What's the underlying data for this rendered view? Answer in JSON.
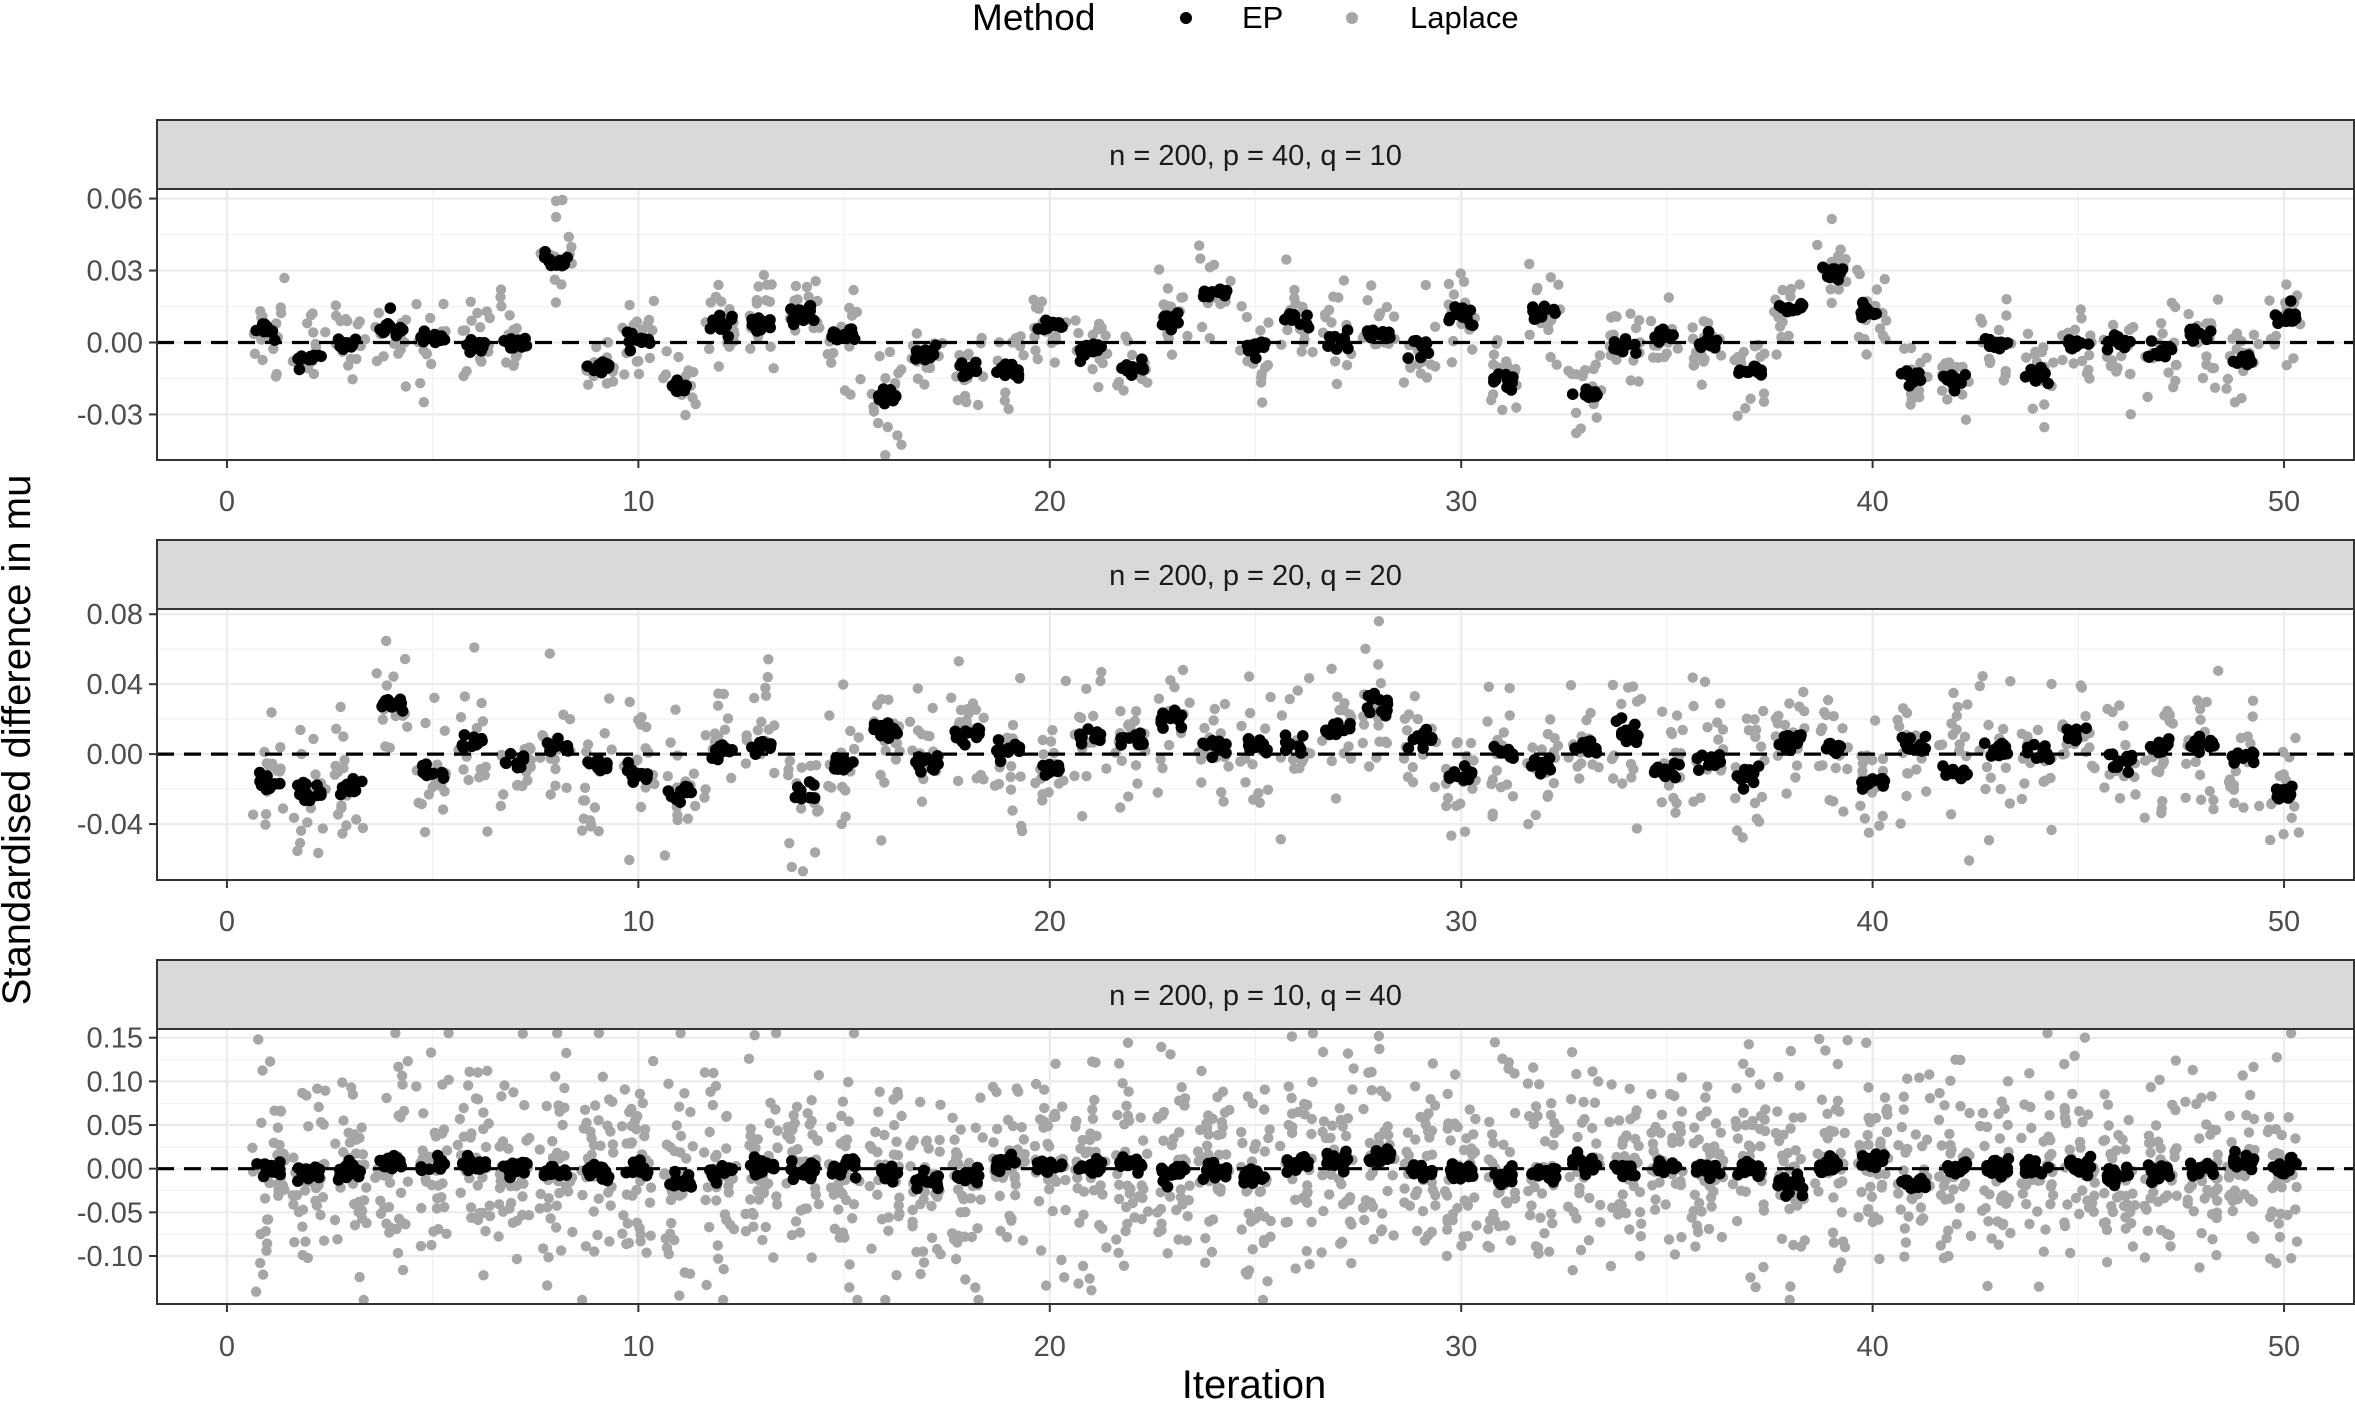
{
  "chart_data": {
    "type": "scatter",
    "legend": {
      "title": "Method",
      "position": "top",
      "entries": [
        {
          "name": "EP",
          "color": "#000000"
        },
        {
          "name": "Laplace",
          "color": "#a6a6a6"
        }
      ]
    },
    "xlabel": "Iteration",
    "ylabel": "Standardised difference in mu",
    "xlim": [
      -1.7,
      51.7
    ],
    "x_ticks": [
      0,
      10,
      20,
      30,
      40,
      50
    ],
    "x_tick_labels": [
      "0",
      "10",
      "20",
      "30",
      "40",
      "50"
    ],
    "grid": true,
    "reference_line": {
      "y": 0,
      "style": "dashed",
      "color": "#000000"
    },
    "series": [
      {
        "name": "EP",
        "color": "#000000"
      },
      {
        "name": "Laplace",
        "color": "#a6a6a6"
      }
    ],
    "panels": [
      {
        "strip": "n = 200, p = 40, q = 10",
        "ylim": [
          -0.049,
          0.064
        ],
        "y_ticks": [
          -0.03,
          0,
          0.03,
          0.06
        ],
        "y_tick_labels": [
          "-0.03",
          "0.00",
          "0.03",
          "0.06"
        ],
        "iterations": [
          1,
          2,
          3,
          4,
          5,
          6,
          7,
          8,
          9,
          10,
          11,
          12,
          13,
          14,
          15,
          16,
          17,
          18,
          19,
          20,
          21,
          22,
          23,
          24,
          25,
          26,
          27,
          28,
          29,
          30,
          31,
          32,
          33,
          34,
          35,
          36,
          37,
          38,
          39,
          40,
          41,
          42,
          43,
          44,
          45,
          46,
          47,
          48,
          49,
          50
        ],
        "EP_center": [
          0.006,
          -0.006,
          -0.001,
          0.006,
          0.002,
          -0.002,
          0.0,
          0.034,
          -0.01,
          0.001,
          -0.019,
          0.008,
          0.008,
          0.011,
          0.003,
          -0.022,
          -0.005,
          -0.011,
          -0.011,
          0.007,
          -0.004,
          -0.011,
          0.009,
          0.021,
          -0.001,
          0.01,
          0.001,
          0.003,
          -0.001,
          0.012,
          -0.016,
          0.013,
          -0.021,
          -0.001,
          0.003,
          0.0,
          -0.012,
          0.014,
          0.029,
          0.013,
          -0.014,
          -0.016,
          -0.001,
          -0.014,
          0.0,
          0.0,
          -0.004,
          0.004,
          -0.007,
          0.011
        ],
        "EP_spread": 0.005,
        "Laplace_spread": 0.02,
        "Laplace_extremes": {
          "max": 0.059,
          "min": -0.047
        }
      },
      {
        "strip": "n = 200, p = 20, q = 20",
        "ylim": [
          -0.072,
          0.083
        ],
        "y_ticks": [
          -0.04,
          0,
          0.04,
          0.08
        ],
        "y_tick_labels": [
          "-0.04",
          "0.00",
          "0.04",
          "0.08"
        ],
        "iterations": [
          1,
          2,
          3,
          4,
          5,
          6,
          7,
          8,
          9,
          10,
          11,
          12,
          13,
          14,
          15,
          16,
          17,
          18,
          19,
          20,
          21,
          22,
          23,
          24,
          25,
          26,
          27,
          28,
          29,
          30,
          31,
          32,
          33,
          34,
          35,
          36,
          37,
          38,
          39,
          40,
          41,
          42,
          43,
          44,
          45,
          46,
          47,
          48,
          49,
          50
        ],
        "EP_center": [
          -0.017,
          -0.021,
          -0.019,
          0.028,
          -0.012,
          0.008,
          -0.005,
          0.004,
          -0.006,
          -0.01,
          -0.022,
          0.002,
          0.003,
          -0.023,
          -0.005,
          0.013,
          -0.005,
          0.011,
          0.003,
          -0.008,
          0.01,
          0.008,
          0.02,
          0.003,
          0.004,
          0.006,
          0.015,
          0.029,
          0.009,
          -0.013,
          0.001,
          -0.005,
          0.004,
          0.014,
          -0.01,
          -0.004,
          -0.012,
          0.008,
          0.004,
          -0.016,
          0.006,
          -0.01,
          0.003,
          -0.001,
          0.011,
          -0.005,
          0.004,
          0.004,
          0.0,
          -0.023
        ],
        "EP_spread": 0.008,
        "Laplace_spread": 0.045,
        "Laplace_extremes": {
          "max": 0.076,
          "min": -0.067
        }
      },
      {
        "strip": "n = 200, p = 10, q = 40",
        "ylim": [
          -0.155,
          0.16
        ],
        "y_ticks": [
          -0.1,
          -0.05,
          0,
          0.05,
          0.1,
          0.15
        ],
        "y_tick_labels": [
          "-0.10",
          "-0.05",
          "0.00",
          "0.05",
          "0.10",
          "0.15"
        ],
        "iterations": [
          1,
          2,
          3,
          4,
          5,
          6,
          7,
          8,
          9,
          10,
          11,
          12,
          13,
          14,
          15,
          16,
          17,
          18,
          19,
          20,
          21,
          22,
          23,
          24,
          25,
          26,
          27,
          28,
          29,
          30,
          31,
          32,
          33,
          34,
          35,
          36,
          37,
          38,
          39,
          40,
          41,
          42,
          43,
          44,
          45,
          46,
          47,
          48,
          49,
          50
        ],
        "EP_center": [
          0.0,
          -0.005,
          -0.003,
          0.005,
          0.003,
          0.004,
          0.002,
          -0.006,
          -0.002,
          0.001,
          -0.015,
          -0.004,
          0.002,
          -0.002,
          0.001,
          -0.008,
          -0.015,
          -0.006,
          0.007,
          0.002,
          0.003,
          0.005,
          -0.004,
          -0.003,
          -0.008,
          0.008,
          0.01,
          0.012,
          -0.005,
          -0.005,
          -0.008,
          -0.007,
          0.006,
          -0.003,
          0.002,
          -0.001,
          0.0,
          -0.018,
          0.002,
          0.008,
          -0.016,
          0.001,
          0.001,
          0.002,
          0.003,
          -0.008,
          -0.004,
          -0.003,
          0.008,
          0.001
        ],
        "EP_spread": 0.014,
        "Laplace_spread": 0.13,
        "Laplace_extremes": {
          "max": 0.152,
          "min": -0.135
        }
      }
    ]
  }
}
